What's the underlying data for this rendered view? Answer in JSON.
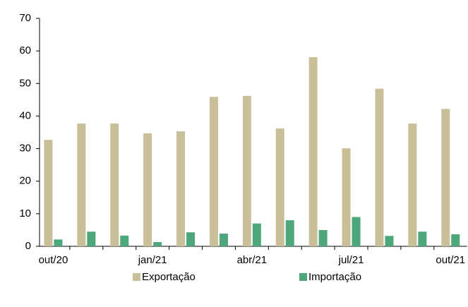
{
  "chart_data": {
    "type": "bar",
    "categories": [
      "out/20",
      null,
      null,
      "jan/21",
      null,
      null,
      "abr/21",
      null,
      null,
      "jul/21",
      null,
      null,
      "out/21"
    ],
    "series": [
      {
        "name": "Exportação",
        "color": "#c9c09a",
        "values": [
          32.7,
          37.7,
          37.7,
          34.7,
          35.3,
          45.9,
          46.2,
          36.2,
          58.1,
          30.1,
          48.4,
          37.7,
          42.2
        ]
      },
      {
        "name": "Importação",
        "color": "#4ea77a",
        "values": [
          2.1,
          4.5,
          3.3,
          1.3,
          4.3,
          3.9,
          7.0,
          8.0,
          5.0,
          9.0,
          3.2,
          4.5,
          3.7
        ]
      }
    ],
    "ylim": [
      0,
      70
    ],
    "yticks": [
      0,
      10,
      20,
      30,
      40,
      50,
      60,
      70
    ],
    "grid": false,
    "legend": "bottom"
  }
}
